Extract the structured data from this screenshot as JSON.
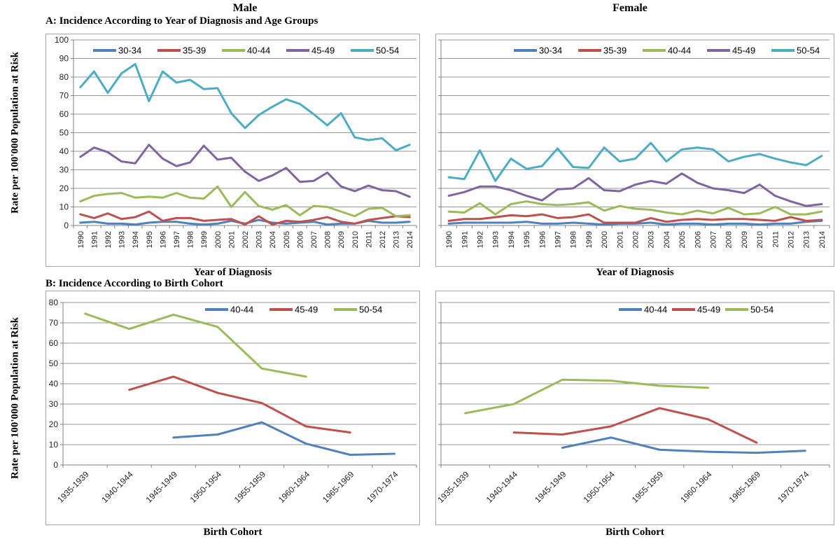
{
  "figure": {
    "panel_a_title": "A: Incidence According to Year of Diagnosis and Age Groups",
    "panel_b_title": "B: Incidence According to Birth Cohort"
  },
  "palette": {
    "blue": "#4F81BD",
    "red": "#C0504D",
    "green": "#9BBB59",
    "purple": "#8064A2",
    "cyan": "#4BACC6",
    "grid": "#969696",
    "axis": "#808080",
    "frame": "#A6A6A6",
    "tick_text": "#262626"
  },
  "chart_data": [
    {
      "type": "line",
      "title": "Male",
      "panel": "A",
      "xlabel": "Year of Diagnosis",
      "ylabel": "Rate per 100'000 Population at Risk",
      "ylim": [
        0,
        100
      ],
      "ytick_step": 10,
      "show_y_labels": true,
      "grid": true,
      "legend_position": "top-inside",
      "categories": [
        "1990",
        "1991",
        "1992",
        "1993",
        "1994",
        "1995",
        "1996",
        "1997",
        "1998",
        "1999",
        "2000",
        "2001",
        "2002",
        "2003",
        "2004",
        "2005",
        "2006",
        "2007",
        "2008",
        "2009",
        "2010",
        "2011",
        "2012",
        "2013",
        "2014"
      ],
      "series": [
        {
          "name": "30-34",
          "color": "blue",
          "values": [
            1.5,
            2,
            1,
            1,
            0.5,
            1.5,
            2,
            2,
            1,
            0.5,
            1,
            2.5,
            1,
            3,
            1.5,
            1,
            1.5,
            2,
            0.5,
            1,
            1,
            2.5,
            1.5,
            1.5,
            2
          ]
        },
        {
          "name": "35-39",
          "color": "red",
          "values": [
            6,
            4,
            6.5,
            3.5,
            4.5,
            7.5,
            2.5,
            4,
            4,
            2.5,
            3,
            3.5,
            0.5,
            5,
            0.5,
            2.5,
            2,
            3,
            4.5,
            2,
            1,
            3,
            4,
            5,
            4.5
          ]
        },
        {
          "name": "40-44",
          "color": "green",
          "values": [
            13,
            16,
            17,
            17.5,
            15,
            15.5,
            15,
            17.5,
            15,
            14.5,
            21,
            10,
            18,
            10.5,
            8.5,
            11,
            5.5,
            10.5,
            10,
            7.5,
            5,
            9,
            9.5,
            5,
            5.5
          ]
        },
        {
          "name": "45-49",
          "color": "purple",
          "values": [
            37,
            42,
            39.5,
            34.5,
            33.5,
            43.5,
            36,
            32,
            34,
            43,
            35.5,
            36.5,
            29,
            24,
            27,
            31,
            23.5,
            24,
            28.5,
            21,
            18.5,
            21.5,
            19,
            18.5,
            15.5
          ]
        },
        {
          "name": "50-54",
          "color": "cyan",
          "values": [
            74.5,
            83,
            71.5,
            82,
            87,
            67,
            83,
            77,
            78.5,
            73.5,
            74,
            60.5,
            52.5,
            59.5,
            64,
            68,
            65.5,
            60,
            54,
            60.5,
            47.5,
            46,
            47,
            40.5,
            43.5
          ]
        }
      ]
    },
    {
      "type": "line",
      "title": "Female",
      "panel": "A",
      "xlabel": "Year of Diagnosis",
      "ylim": [
        0,
        100
      ],
      "ytick_step": 10,
      "show_y_labels": false,
      "grid": true,
      "legend_position": "top-inside",
      "categories": [
        "1990",
        "1991",
        "1992",
        "1993",
        "1994",
        "1995",
        "1996",
        "1997",
        "1998",
        "1999",
        "2000",
        "2001",
        "2002",
        "2003",
        "2004",
        "2005",
        "2006",
        "2007",
        "2008",
        "2009",
        "2010",
        "2011",
        "2012",
        "2013",
        "2014"
      ],
      "series": [
        {
          "name": "30-34",
          "color": "blue",
          "values": [
            1,
            1.5,
            1.5,
            1.5,
            1.5,
            2,
            1,
            1,
            1.5,
            1,
            0.5,
            1,
            1,
            1.5,
            0.5,
            1,
            1,
            0.5,
            1,
            1,
            0.5,
            1,
            1,
            2,
            2.5
          ]
        },
        {
          "name": "35-39",
          "color": "red",
          "values": [
            2.5,
            3.5,
            3.5,
            4.5,
            5.5,
            5,
            6,
            4,
            4.5,
            6,
            1.5,
            1.5,
            1.5,
            4,
            2,
            3,
            3.5,
            3,
            3.5,
            3.5,
            3,
            2.5,
            4.5,
            2.5,
            3
          ]
        },
        {
          "name": "40-44",
          "color": "green",
          "values": [
            7.5,
            7,
            12,
            6,
            11.5,
            13,
            11.5,
            11,
            11.5,
            12.5,
            8,
            10.5,
            9,
            8.5,
            7,
            6,
            8,
            6.5,
            9.5,
            6,
            6.5,
            10,
            6,
            6,
            7.5
          ]
        },
        {
          "name": "45-49",
          "color": "purple",
          "values": [
            16,
            18,
            21,
            21,
            19,
            16,
            13.5,
            19.5,
            20,
            25.5,
            19,
            18.5,
            22,
            24,
            22.5,
            28,
            23,
            20,
            19,
            17.5,
            22,
            16,
            13,
            10.5,
            11.5
          ]
        },
        {
          "name": "50-54",
          "color": "cyan",
          "values": [
            26,
            25,
            40.5,
            24,
            36,
            30.5,
            32,
            41.5,
            31.5,
            31,
            42,
            34.5,
            36,
            44.5,
            34.5,
            41,
            42,
            41,
            34.5,
            37,
            38.5,
            36,
            34,
            32.5,
            37.5
          ]
        }
      ]
    },
    {
      "type": "line",
      "title": "Male",
      "panel": "B",
      "xlabel": "Birth Cohort",
      "ylabel": "Rate per 100'000 Population at Risk",
      "ylim": [
        0,
        80
      ],
      "ytick_step": 10,
      "show_y_labels": true,
      "grid": true,
      "legend_position": "top-inside",
      "categories": [
        "1935-1939",
        "1940-1944",
        "1945-1949",
        "1950-1954",
        "1955-1959",
        "1960-1964",
        "1965-1969",
        "1970-1974"
      ],
      "series": [
        {
          "name": "40-44",
          "color": "blue",
          "values": [
            null,
            null,
            13.5,
            15,
            21,
            10.5,
            5,
            5.5
          ]
        },
        {
          "name": "45-49",
          "color": "red",
          "values": [
            null,
            37,
            43.5,
            35.5,
            30.5,
            19,
            16,
            null
          ]
        },
        {
          "name": "50-54",
          "color": "green",
          "values": [
            74.5,
            67,
            74,
            68,
            47.5,
            43.5,
            null,
            null
          ]
        }
      ]
    },
    {
      "type": "line",
      "title": "Female",
      "panel": "B",
      "xlabel": "Birth Cohort",
      "ylim": [
        0,
        80
      ],
      "ytick_step": 10,
      "show_y_labels": false,
      "grid": true,
      "legend_position": "top-inside",
      "categories": [
        "1935-1939",
        "1940-1944",
        "1945-1949",
        "1950-1954",
        "1955-1959",
        "1960-1964",
        "1965-1969",
        "1970-1974"
      ],
      "series": [
        {
          "name": "40-44",
          "color": "blue",
          "values": [
            null,
            null,
            8.5,
            13.5,
            7.5,
            6.5,
            6,
            7
          ]
        },
        {
          "name": "45-49",
          "color": "red",
          "values": [
            null,
            16,
            15,
            19,
            28,
            22.5,
            11,
            null
          ]
        },
        {
          "name": "50-54",
          "color": "green",
          "values": [
            25.5,
            30,
            42,
            41.5,
            39,
            38,
            null,
            null
          ]
        }
      ]
    }
  ]
}
